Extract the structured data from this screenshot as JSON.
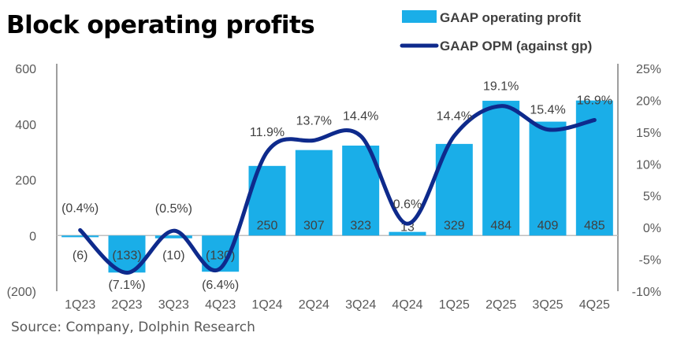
{
  "title": "Block operating profits",
  "source": "Source: Company, Dolphin Research",
  "chart_data": {
    "type": "bar+line",
    "title": "Block operating profits",
    "categories": [
      "1Q23",
      "2Q23",
      "3Q23",
      "4Q23",
      "1Q24",
      "2Q24",
      "3Q24",
      "4Q24",
      "1Q25",
      "2Q25",
      "3Q25",
      "4Q25"
    ],
    "series": [
      {
        "name": "GAAP operating profit",
        "type": "bar",
        "axis": "left",
        "color": "#1AAEE8",
        "values": [
          -6,
          -133,
          -10,
          -130,
          250,
          307,
          323,
          13,
          329,
          484,
          409,
          485
        ],
        "labels": [
          "(6)",
          "(133)",
          "(10)",
          "(130)",
          "250",
          "307",
          "323",
          "13",
          "329",
          "484",
          "409",
          "485"
        ]
      },
      {
        "name": "GAAP OPM (against gp)",
        "type": "line",
        "axis": "right",
        "color": "#0E2A8C",
        "values": [
          -0.4,
          -7.1,
          -0.5,
          -6.4,
          11.9,
          13.7,
          14.4,
          0.6,
          14.4,
          19.1,
          15.4,
          16.9
        ],
        "labels": [
          "(0.4%)",
          "(7.1%)",
          "(0.5%)",
          "(6.4%)",
          "11.9%",
          "13.7%",
          "14.4%",
          "0.6%",
          "14.4%",
          "19.1%",
          "15.4%",
          "16.9%"
        ]
      }
    ],
    "y_left": {
      "range": [
        -200,
        600
      ],
      "ticks": [
        "(200)",
        "0",
        "200",
        "400",
        "600"
      ],
      "tick_values": [
        -200,
        0,
        200,
        400,
        600
      ]
    },
    "y_right": {
      "range": [
        -10,
        25
      ],
      "ticks": [
        "-10%",
        "-5%",
        "0%",
        "5%",
        "10%",
        "15%",
        "20%",
        "25%"
      ],
      "tick_values": [
        -10,
        -5,
        0,
        5,
        10,
        15,
        20,
        25
      ]
    },
    "grid": false,
    "legend": "top-right"
  }
}
